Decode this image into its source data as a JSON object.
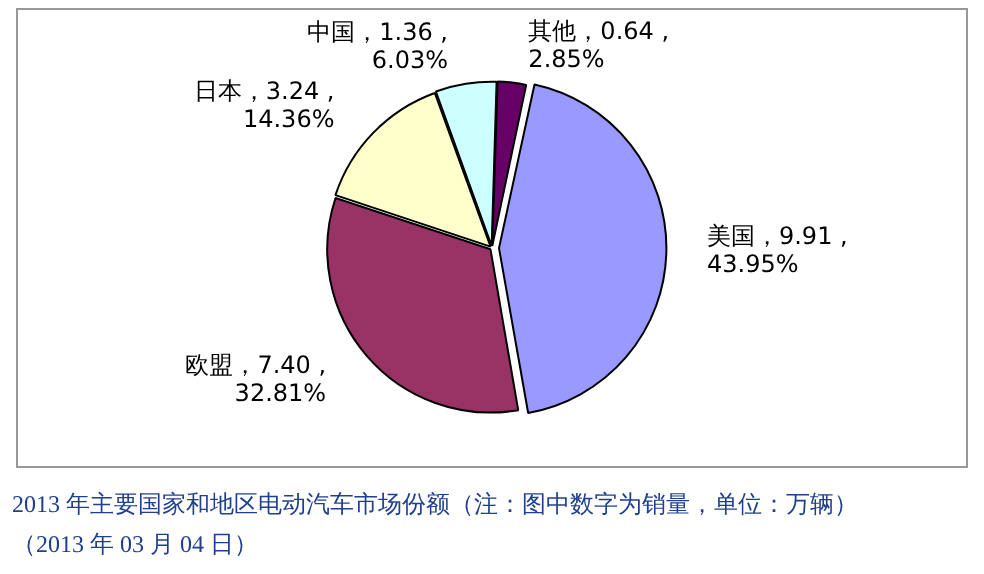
{
  "chart_data": {
    "type": "pie",
    "categories": [
      "美国",
      "欧盟",
      "日本",
      "中国",
      "其他"
    ],
    "values": [
      9.91,
      7.4,
      3.24,
      1.36,
      0.64
    ],
    "colors": [
      "#9999ff",
      "#993366",
      "#ffffcc",
      "#ccffff",
      "#660066"
    ],
    "value_labels": [
      "，9.91 ,\n43.95%",
      "，7.40 ,\n32.81%",
      "，3.24 ,\n14.36%",
      "，1.36 ,\n6.03%",
      "，0.64 ,\n2.85%"
    ],
    "legend": false,
    "annotations": [
      "2013 年主要国家和地区电动汽车市场份额（注：图中数字为销量，单位：万辆）",
      "（2013 年 03 月 04 日）"
    ]
  }
}
